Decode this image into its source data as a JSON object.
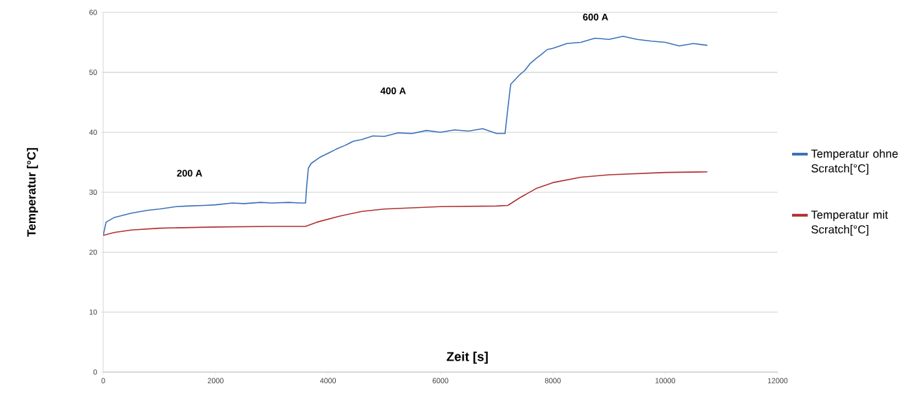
{
  "chart_data": {
    "type": "line",
    "xlabel": "Zeit [s]",
    "ylabel": "Temperatur [°C]",
    "annotations": [
      "200 A",
      "400 A",
      "600 A"
    ],
    "xlim": [
      0,
      12000
    ],
    "ylim": [
      0,
      60
    ],
    "xticks": [
      0,
      2000,
      4000,
      6000,
      8000,
      10000,
      12000
    ],
    "yticks": [
      0,
      10,
      20,
      30,
      40,
      50,
      60
    ],
    "grid": "y",
    "legend": "right",
    "series": [
      {
        "name": "Temperatur ohne Scratch[°C]",
        "color": "#3a72b8",
        "x": [
          0,
          50,
          200,
          500,
          800,
          1000,
          1300,
          1500,
          1800,
          2000,
          2300,
          2500,
          2800,
          3000,
          3300,
          3500,
          3600,
          3620,
          3650,
          3700,
          3850,
          4000,
          4150,
          4300,
          4450,
          4600,
          4800,
          5000,
          5250,
          5500,
          5750,
          6000,
          6250,
          6500,
          6750,
          7000,
          7150,
          7200,
          7250,
          7400,
          7500,
          7600,
          7700,
          7800,
          7900,
          8000,
          8250,
          8500,
          8750,
          9000,
          9250,
          9500,
          9750,
          10000,
          10250,
          10500,
          10750
        ],
        "values": [
          22.8,
          25,
          25.8,
          26.5,
          27,
          27.2,
          27.6,
          27.7,
          27.8,
          27.9,
          28.2,
          28.1,
          28.3,
          28.2,
          28.3,
          28.2,
          28.2,
          31,
          34,
          34.8,
          35.8,
          36.5,
          37.2,
          37.8,
          38.5,
          38.8,
          39.4,
          39.3,
          39.9,
          39.8,
          40.3,
          40,
          40.4,
          40.2,
          40.6,
          39.8,
          39.8,
          44,
          48,
          49.5,
          50.3,
          51.5,
          52.3,
          53,
          53.8,
          54,
          54.8,
          55,
          55.7,
          55.5,
          56,
          55.5,
          55.2,
          55,
          54.4,
          54.8,
          54.5
        ]
      },
      {
        "name": "Temperatur mit Scratch[°C]",
        "color": "#b03030",
        "x": [
          0,
          200,
          500,
          1000,
          2000,
          3000,
          3600,
          3800,
          4200,
          4600,
          5000,
          6000,
          7000,
          7200,
          7400,
          7700,
          8000,
          8500,
          9000,
          9500,
          10000,
          10750
        ],
        "values": [
          22.8,
          23.3,
          23.7,
          24,
          24.2,
          24.3,
          24.3,
          25,
          26,
          26.8,
          27.2,
          27.6,
          27.7,
          27.8,
          29,
          30.6,
          31.6,
          32.5,
          32.9,
          33.1,
          33.3,
          33.4
        ]
      }
    ]
  }
}
